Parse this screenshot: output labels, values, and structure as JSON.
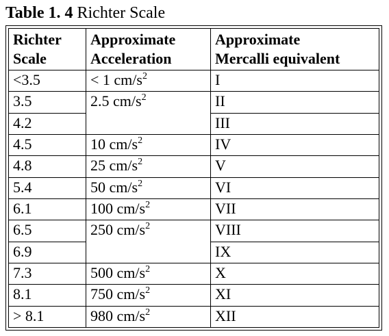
{
  "caption": {
    "label": "Table 1. 4",
    "title": "Richter Scale"
  },
  "table": {
    "headers": {
      "richter_line1": "Richter",
      "richter_line2": "Scale",
      "accel_line1": "Approximate",
      "accel_line2": "Acceleration",
      "mercalli_line1": "Approximate",
      "mercalli_line2": "Mercalli equivalent"
    },
    "unit_exponent": "2",
    "rows": [
      {
        "richter": "<3.5",
        "accel": "< 1 cm/s",
        "mercalli": "I"
      },
      {
        "richter": "3.5",
        "accel": "2.5 cm/s",
        "mercalli": "II"
      },
      {
        "richter": "4.2",
        "mercalli": "III"
      },
      {
        "richter": "4.5",
        "accel": "10 cm/s",
        "mercalli": "IV"
      },
      {
        "richter": "4.8",
        "accel": "25 cm/s",
        "mercalli": "V"
      },
      {
        "richter": "5.4",
        "accel": "50 cm/s",
        "mercalli": "VI"
      },
      {
        "richter": "6.1",
        "accel": "100 cm/s",
        "mercalli": "VII"
      },
      {
        "richter": "6.5",
        "accel": "250 cm/s",
        "mercalli": "VIII"
      },
      {
        "richter": "6.9",
        "mercalli": "IX"
      },
      {
        "richter": "7.3",
        "accel": "500 cm/s",
        "mercalli": "X"
      },
      {
        "richter": "8.1",
        "accel": "750 cm/s",
        "mercalli": "XI"
      },
      {
        "richter": "> 8.1",
        "accel": "980 cm/s",
        "mercalli": "XII"
      }
    ]
  }
}
